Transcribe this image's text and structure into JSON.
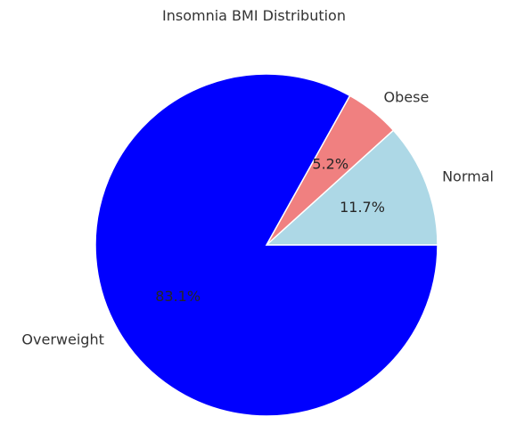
{
  "chart_data": {
    "type": "pie",
    "title": "Insomnia BMI Distribution",
    "slices": [
      {
        "label": "Normal",
        "value": 11.7,
        "pct_label": "11.7%",
        "color": "#add8e6"
      },
      {
        "label": "Obese",
        "value": 5.2,
        "pct_label": "5.2%",
        "color": "#f08080"
      },
      {
        "label": "Overweight",
        "value": 83.1,
        "pct_label": "83.1%",
        "color": "#0000ff"
      }
    ],
    "start_angle_deg": 0,
    "direction": "counterclockwise",
    "slice_edge_color": "#ffffff"
  }
}
